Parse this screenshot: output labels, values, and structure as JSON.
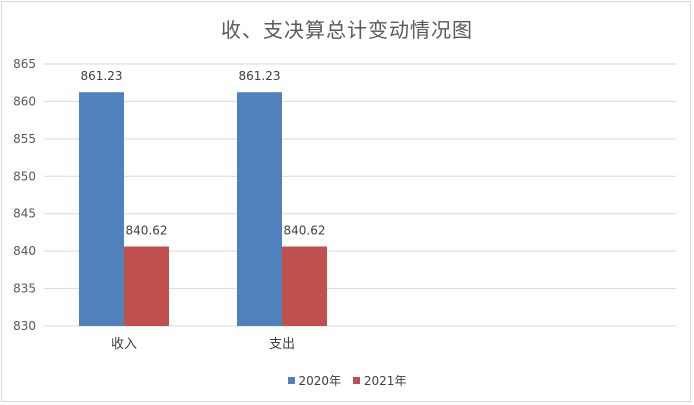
{
  "chart_data": {
    "type": "bar",
    "title": "收、支决算总计变动情况图",
    "categories": [
      "收入",
      "支出"
    ],
    "series": [
      {
        "name": "2020年",
        "values": [
          861.23,
          861.23
        ],
        "labels": [
          "861.23",
          "861.23"
        ],
        "color": "#4f81bd"
      },
      {
        "name": "2021年",
        "values": [
          840.62,
          840.62
        ],
        "labels": [
          "840.62",
          "840.62"
        ],
        "color": "#c0504d"
      }
    ],
    "ylim": [
      830,
      865
    ],
    "yticks": [
      830,
      835,
      840,
      845,
      850,
      855,
      860,
      865
    ],
    "grid": true,
    "legend": "bottom"
  }
}
